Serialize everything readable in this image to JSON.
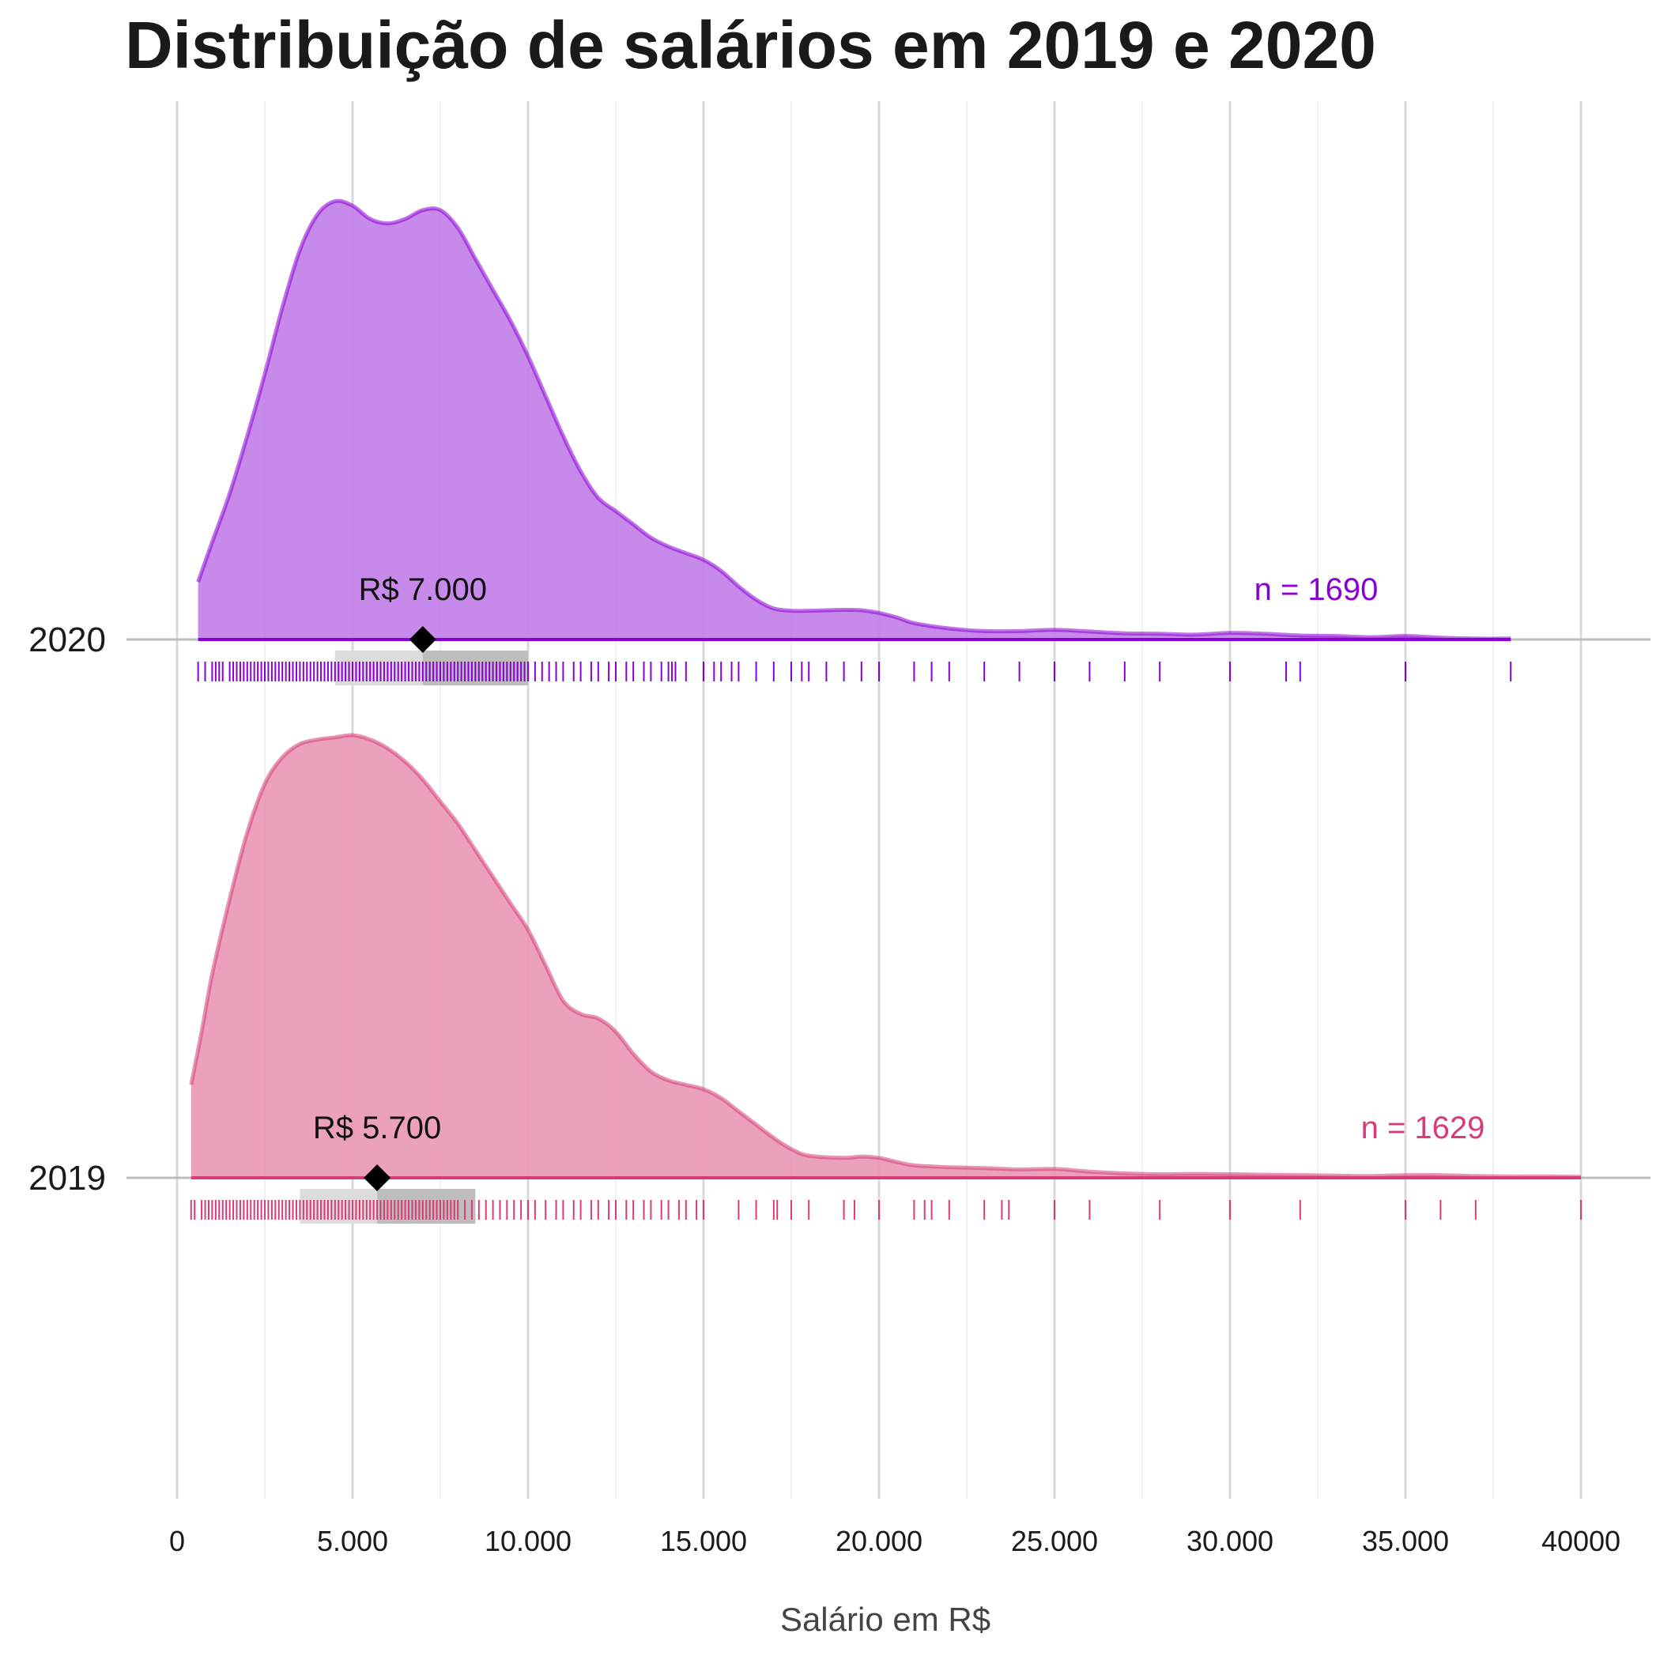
{
  "chart_data": {
    "type": "density_ridgeline",
    "title": "Distribuição de salários em 2019 e 2020",
    "xlabel": "Salário em R$",
    "ylabel": "",
    "xlim": [
      0,
      40000
    ],
    "x_ticks": [
      {
        "value": 0,
        "label": "0"
      },
      {
        "value": 5000,
        "label": "5.000"
      },
      {
        "value": 10000,
        "label": "10.000"
      },
      {
        "value": 15000,
        "label": "15.000"
      },
      {
        "value": 20000,
        "label": "20.000"
      },
      {
        "value": 25000,
        "label": "25.000"
      },
      {
        "value": 30000,
        "label": "30.000"
      },
      {
        "value": 35000,
        "label": "35.000"
      },
      {
        "value": 40000,
        "label": "40000"
      }
    ],
    "grid": true,
    "legend": "none",
    "series": [
      {
        "name": "2020",
        "color": "#8a00d4",
        "fill": "#c17de8",
        "median": 7000,
        "median_label": "R$ 7.000",
        "n_label": "n = 1690",
        "quartile_box": {
          "q1": 4500,
          "median": 7000,
          "q3": 10000
        },
        "density": [
          [
            600,
            0.13
          ],
          [
            1000,
            0.22
          ],
          [
            1500,
            0.33
          ],
          [
            2000,
            0.46
          ],
          [
            2500,
            0.6
          ],
          [
            3000,
            0.75
          ],
          [
            3500,
            0.88
          ],
          [
            4000,
            0.96
          ],
          [
            4500,
            0.99
          ],
          [
            5000,
            0.98
          ],
          [
            5500,
            0.95
          ],
          [
            6000,
            0.94
          ],
          [
            6500,
            0.95
          ],
          [
            7000,
            0.97
          ],
          [
            7500,
            0.97
          ],
          [
            8000,
            0.93
          ],
          [
            8500,
            0.86
          ],
          [
            9000,
            0.79
          ],
          [
            9500,
            0.72
          ],
          [
            10000,
            0.64
          ],
          [
            10500,
            0.55
          ],
          [
            11000,
            0.46
          ],
          [
            11500,
            0.38
          ],
          [
            12000,
            0.32
          ],
          [
            12500,
            0.29
          ],
          [
            13000,
            0.26
          ],
          [
            13500,
            0.23
          ],
          [
            14000,
            0.21
          ],
          [
            14500,
            0.195
          ],
          [
            15000,
            0.18
          ],
          [
            15500,
            0.155
          ],
          [
            16000,
            0.12
          ],
          [
            16500,
            0.09
          ],
          [
            17000,
            0.07
          ],
          [
            17500,
            0.065
          ],
          [
            18000,
            0.065
          ],
          [
            19000,
            0.067
          ],
          [
            19500,
            0.066
          ],
          [
            20000,
            0.06
          ],
          [
            20500,
            0.05
          ],
          [
            21000,
            0.037
          ],
          [
            22000,
            0.025
          ],
          [
            23000,
            0.019
          ],
          [
            24000,
            0.019
          ],
          [
            25000,
            0.022
          ],
          [
            26000,
            0.018
          ],
          [
            27000,
            0.014
          ],
          [
            28000,
            0.013
          ],
          [
            29000,
            0.011
          ],
          [
            30000,
            0.015
          ],
          [
            31000,
            0.013
          ],
          [
            32000,
            0.009
          ],
          [
            33000,
            0.008
          ],
          [
            34000,
            0.005
          ],
          [
            35000,
            0.008
          ],
          [
            36000,
            0.004
          ],
          [
            37000,
            0.002
          ],
          [
            38000,
            0.002
          ]
        ],
        "rug": [
          600,
          800,
          1000,
          1100,
          1200,
          1300,
          1500,
          1600,
          1700,
          1800,
          1900,
          2000,
          2100,
          2200,
          2300,
          2400,
          2500,
          2600,
          2700,
          2800,
          2900,
          3000,
          3100,
          3200,
          3300,
          3400,
          3500,
          3600,
          3700,
          3800,
          3900,
          4000,
          4100,
          4200,
          4300,
          4400,
          4500,
          4600,
          4700,
          4800,
          4900,
          5000,
          5100,
          5200,
          5300,
          5400,
          5500,
          5600,
          5700,
          5800,
          5900,
          6000,
          6100,
          6200,
          6300,
          6400,
          6500,
          6600,
          6700,
          6800,
          6900,
          7000,
          7100,
          7200,
          7300,
          7400,
          7500,
          7600,
          7700,
          7800,
          7900,
          8000,
          8100,
          8200,
          8300,
          8400,
          8500,
          8600,
          8700,
          8800,
          8900,
          9000,
          9100,
          9200,
          9300,
          9400,
          9500,
          9600,
          9700,
          9800,
          9900,
          10000,
          10200,
          10400,
          10600,
          10800,
          11000,
          11300,
          11500,
          11800,
          12000,
          12300,
          12500,
          12800,
          13000,
          13300,
          13500,
          13800,
          14000,
          14100,
          14200,
          14500,
          15000,
          15300,
          15500,
          15800,
          16000,
          16500,
          17000,
          17500,
          17800,
          18000,
          18500,
          19000,
          19500,
          20000,
          21000,
          21500,
          22000,
          23000,
          24000,
          25000,
          26000,
          27000,
          28000,
          30000,
          31600,
          32000,
          35000,
          38000
        ]
      },
      {
        "name": "2019",
        "color": "#d63c78",
        "fill": "#e996b6",
        "median": 5700,
        "median_label": "R$ 5.700",
        "n_label": "n = 1629",
        "quartile_box": {
          "q1": 3500,
          "median": 5700,
          "q3": 8500
        },
        "density": [
          [
            400,
            0.21
          ],
          [
            700,
            0.33
          ],
          [
            1000,
            0.46
          ],
          [
            1500,
            0.63
          ],
          [
            2000,
            0.78
          ],
          [
            2500,
            0.89
          ],
          [
            3000,
            0.95
          ],
          [
            3500,
            0.98
          ],
          [
            4000,
            0.99
          ],
          [
            4500,
            0.995
          ],
          [
            5000,
            1.0
          ],
          [
            5500,
            0.99
          ],
          [
            6000,
            0.97
          ],
          [
            6500,
            0.94
          ],
          [
            7000,
            0.9
          ],
          [
            7500,
            0.85
          ],
          [
            8000,
            0.8
          ],
          [
            8500,
            0.74
          ],
          [
            9000,
            0.68
          ],
          [
            9500,
            0.62
          ],
          [
            10000,
            0.56
          ],
          [
            10500,
            0.48
          ],
          [
            11000,
            0.4
          ],
          [
            11500,
            0.37
          ],
          [
            12000,
            0.36
          ],
          [
            12500,
            0.33
          ],
          [
            13000,
            0.28
          ],
          [
            13500,
            0.24
          ],
          [
            14000,
            0.22
          ],
          [
            14500,
            0.21
          ],
          [
            15000,
            0.2
          ],
          [
            15500,
            0.18
          ],
          [
            16000,
            0.15
          ],
          [
            16500,
            0.12
          ],
          [
            17000,
            0.09
          ],
          [
            17500,
            0.065
          ],
          [
            18000,
            0.05
          ],
          [
            19000,
            0.045
          ],
          [
            19500,
            0.048
          ],
          [
            20000,
            0.045
          ],
          [
            20500,
            0.036
          ],
          [
            21000,
            0.028
          ],
          [
            22000,
            0.024
          ],
          [
            23000,
            0.022
          ],
          [
            24000,
            0.019
          ],
          [
            25000,
            0.02
          ],
          [
            26000,
            0.014
          ],
          [
            27000,
            0.01
          ],
          [
            28000,
            0.008
          ],
          [
            29000,
            0.009
          ],
          [
            30000,
            0.008
          ],
          [
            31000,
            0.007
          ],
          [
            32000,
            0.006
          ],
          [
            33000,
            0.005
          ],
          [
            34000,
            0.004
          ],
          [
            35000,
            0.006
          ],
          [
            36000,
            0.006
          ],
          [
            37000,
            0.004
          ],
          [
            38000,
            0.003
          ],
          [
            39000,
            0.003
          ],
          [
            40000,
            0.002
          ]
        ],
        "rug": [
          400,
          500,
          700,
          800,
          900,
          1000,
          1100,
          1200,
          1300,
          1400,
          1500,
          1600,
          1700,
          1800,
          1900,
          2000,
          2100,
          2200,
          2300,
          2400,
          2500,
          2600,
          2700,
          2800,
          2900,
          3000,
          3100,
          3200,
          3300,
          3400,
          3500,
          3600,
          3700,
          3800,
          3900,
          4000,
          4100,
          4200,
          4300,
          4400,
          4500,
          4600,
          4700,
          4800,
          4900,
          5000,
          5100,
          5200,
          5300,
          5400,
          5500,
          5600,
          5700,
          5800,
          5900,
          6000,
          6100,
          6200,
          6300,
          6400,
          6500,
          6600,
          6700,
          6800,
          6900,
          7000,
          7100,
          7200,
          7300,
          7400,
          7500,
          7600,
          7700,
          7800,
          7900,
          8000,
          8200,
          8400,
          8600,
          8800,
          9000,
          9200,
          9400,
          9600,
          9800,
          10000,
          10200,
          10500,
          10800,
          11000,
          11300,
          11500,
          11800,
          12000,
          12300,
          12500,
          12800,
          13000,
          13300,
          13500,
          13800,
          14000,
          14300,
          14500,
          14800,
          15000,
          16000,
          16500,
          17000,
          17100,
          17500,
          18000,
          19000,
          19300,
          20000,
          21000,
          21300,
          21500,
          22000,
          23000,
          23500,
          23700,
          25000,
          26000,
          28000,
          30000,
          32000,
          35000,
          36000,
          37000,
          40000
        ]
      }
    ]
  }
}
